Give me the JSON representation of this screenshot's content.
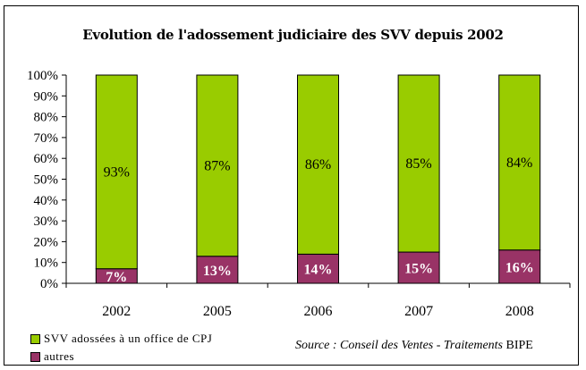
{
  "colors": {
    "svv": "#99cc00",
    "autres": "#993366",
    "axis": "#000000"
  },
  "legend": {
    "items": [
      {
        "label": "SVV adossées à un office de CPJ",
        "color": "#99cc00"
      },
      {
        "label": "autres",
        "color": "#993366"
      }
    ]
  },
  "source": {
    "italic": "Source : Conseil des Ventes - Traitements",
    "normal": "BIPE"
  },
  "chart_data": {
    "type": "bar",
    "stacked": true,
    "title": "Evolution de l'adossement judiciaire des SVV depuis 2002",
    "xlabel": "",
    "ylabel": "",
    "ylim": [
      0,
      100
    ],
    "yticks": [
      "0%",
      "10%",
      "20%",
      "30%",
      "40%",
      "50%",
      "60%",
      "70%",
      "80%",
      "90%",
      "100%"
    ],
    "categories": [
      "2002",
      "2005",
      "2006",
      "2007",
      "2008"
    ],
    "series": [
      {
        "name": "autres",
        "values": [
          7,
          13,
          14,
          15,
          16
        ],
        "labels": [
          "7%",
          "13%",
          "14%",
          "15%",
          "16%"
        ],
        "color": "#993366"
      },
      {
        "name": "SVV adossées à un office de CPJ",
        "values": [
          93,
          87,
          86,
          85,
          84
        ],
        "labels": [
          "93%",
          "87%",
          "86%",
          "85%",
          "84%"
        ],
        "color": "#99cc00"
      }
    ],
    "grid": false,
    "legend_position": "bottom-left"
  }
}
